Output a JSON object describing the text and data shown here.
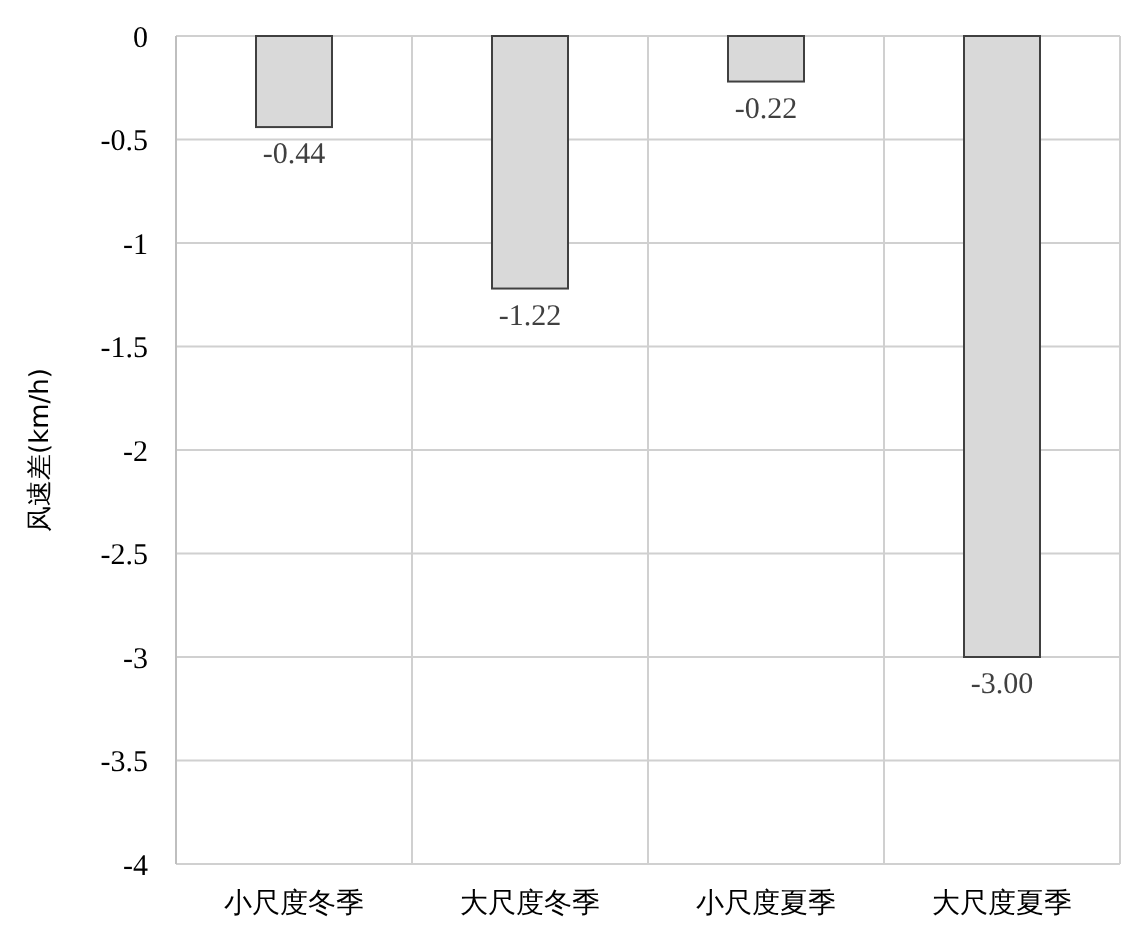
{
  "chart_data": {
    "type": "bar",
    "ylabel": "风速差(km/h)",
    "categories": [
      "小尺度冬季",
      "大尺度冬季",
      "小尺度夏季",
      "大尺度夏季"
    ],
    "values": [
      -0.44,
      -1.22,
      -0.22,
      -3.0
    ],
    "value_labels": [
      "-0.44",
      "-1.22",
      "-0.22",
      "-3.00"
    ],
    "color": "#d9d9d9",
    "ylim": [
      -4,
      0
    ],
    "yticks": [
      0,
      -0.5,
      -1,
      -1.5,
      -2,
      -2.5,
      -3,
      -3.5,
      -4
    ],
    "grid": true
  }
}
